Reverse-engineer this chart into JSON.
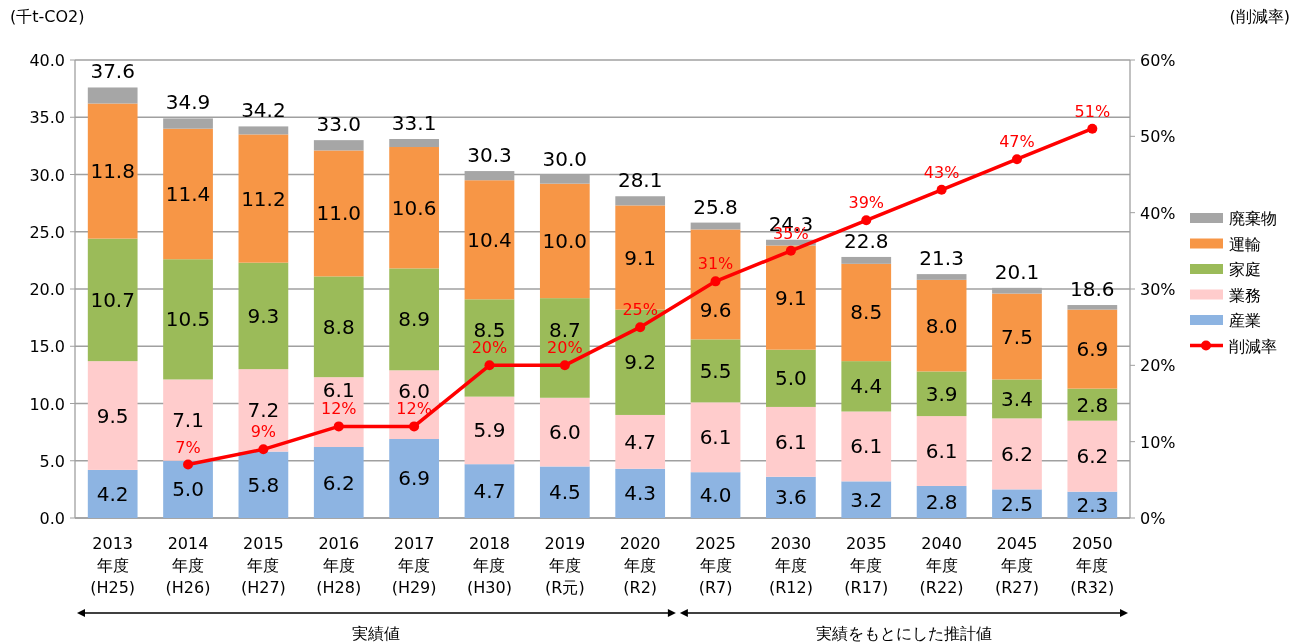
{
  "chart_data": {
    "type": "bar",
    "stacked": true,
    "ylabel": "(千t-CO2)",
    "y2label": "(削減率)",
    "categories": [
      "2013\n年度\n(H25)",
      "2014\n年度\n(H26)",
      "2015\n年度\n(H27)",
      "2016\n年度\n(H28)",
      "2017\n年度\n(H29)",
      "2018\n年度\n(H30)",
      "2019\n年度\n(R元)",
      "2020\n年度\n(R2)",
      "2025\n年度\n(R7)",
      "2030\n年度\n(R12)",
      "2035\n年度\n(R17)",
      "2040\n年度\n(R22)",
      "2045\n年度\n(R27)",
      "2050\n年度\n(R32)"
    ],
    "series": [
      {
        "name": "産業",
        "color": "#8db4e2",
        "values": [
          4.2,
          5.0,
          5.8,
          6.2,
          6.9,
          4.7,
          4.5,
          4.3,
          4.0,
          3.6,
          3.2,
          2.8,
          2.5,
          2.3
        ],
        "value_labels": [
          "4.2",
          "5.0",
          "5.8",
          "6.2",
          "6.9",
          "4.7",
          "4.5",
          "4.3",
          "4.0",
          "3.6",
          "3.2",
          "2.8",
          "2.5",
          "2.3"
        ]
      },
      {
        "name": "業務",
        "color": "#ffcccc",
        "values": [
          9.5,
          7.1,
          7.2,
          6.1,
          6.0,
          5.9,
          6.0,
          4.7,
          6.1,
          6.1,
          6.1,
          6.1,
          6.2,
          6.2
        ],
        "value_labels": [
          "9.5",
          "7.1",
          "7.2",
          "6.1",
          "6.0",
          "5.9",
          "6.0",
          "4.7",
          "6.1",
          "6.1",
          "6.1",
          "6.1",
          "6.2",
          "6.2"
        ]
      },
      {
        "name": "家庭",
        "color": "#9bbb59",
        "values": [
          10.7,
          10.5,
          9.3,
          8.8,
          8.9,
          8.5,
          8.7,
          9.2,
          5.5,
          5.0,
          4.4,
          3.9,
          3.4,
          2.8
        ],
        "value_labels": [
          "10.7",
          "10.5",
          "9.3",
          "8.8",
          "8.9",
          "8.5",
          "8.7",
          "9.2",
          "5.5",
          "5.0",
          "4.4",
          "3.9",
          "3.4",
          "2.8"
        ]
      },
      {
        "name": "運輸",
        "color": "#f79646",
        "values": [
          11.8,
          11.4,
          11.2,
          11.0,
          10.6,
          10.4,
          10.0,
          9.1,
          9.6,
          9.1,
          8.5,
          8.0,
          7.5,
          6.9
        ],
        "value_labels": [
          "11.8",
          "11.4",
          "11.2",
          "11.0",
          "10.6",
          "10.4",
          "10.0",
          "9.1",
          "9.6",
          "9.1",
          "8.5",
          "8.0",
          "7.5",
          "6.9"
        ]
      },
      {
        "name": "廃棄物",
        "color": "#a6a6a6",
        "values": [
          1.4,
          0.9,
          0.7,
          0.9,
          0.7,
          0.8,
          0.8,
          0.8,
          0.6,
          0.5,
          0.6,
          0.5,
          0.5,
          0.4
        ]
      },
      {
        "name": "削減率",
        "type": "line",
        "axis": "y2",
        "color": "#ff0000",
        "marker": "circle",
        "values": [
          null,
          7,
          9,
          12,
          12,
          20,
          20,
          25,
          31,
          35,
          39,
          43,
          47,
          51
        ],
        "value_labels": [
          null,
          "7%",
          "9%",
          "12%",
          "12%",
          "20%",
          "20%",
          "25%",
          "31%",
          "35%",
          "39%",
          "43%",
          "47%",
          "51%"
        ]
      }
    ],
    "totals": [
      "37.6",
      "34.9",
      "34.2",
      "33.0",
      "33.1",
      "30.3",
      "30.0",
      "28.1",
      "25.8",
      "24.3",
      "22.8",
      "21.3",
      "20.1",
      "18.6"
    ],
    "ylim": [
      0,
      40
    ],
    "yticks": [
      {
        "value": 0,
        "label": "0.0"
      },
      {
        "value": 5,
        "label": "5.0"
      },
      {
        "value": 10,
        "label": "10.0"
      },
      {
        "value": 15,
        "label": "15.0"
      },
      {
        "value": 20,
        "label": "20.0"
      },
      {
        "value": 25,
        "label": "25.0"
      },
      {
        "value": 30,
        "label": "30.0"
      },
      {
        "value": 35,
        "label": "35.0"
      },
      {
        "value": 40,
        "label": "40.0"
      }
    ],
    "y2lim": [
      0,
      60
    ],
    "y2ticks": [
      {
        "value": 0,
        "label": "0%"
      },
      {
        "value": 10,
        "label": "10%"
      },
      {
        "value": 20,
        "label": "20%"
      },
      {
        "value": 30,
        "label": "30%"
      },
      {
        "value": 40,
        "label": "40%"
      },
      {
        "value": 50,
        "label": "50%"
      },
      {
        "value": 60,
        "label": "60%"
      }
    ],
    "grid": "y",
    "legend": "right",
    "annotations": [
      "実績値",
      "実績をもとにした推計値"
    ]
  }
}
